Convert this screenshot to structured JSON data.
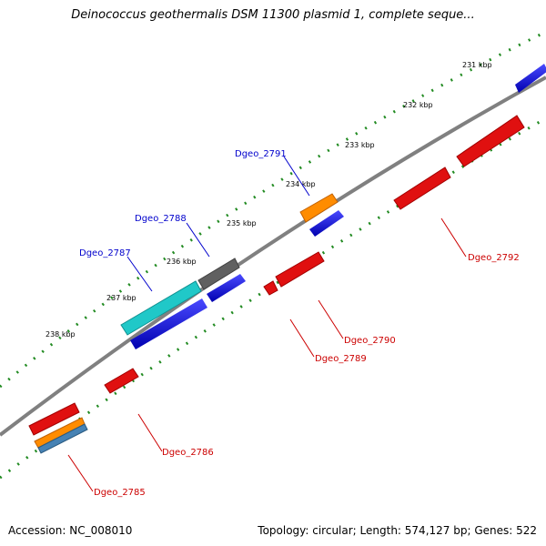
{
  "title": "Deinococcus geothermalis DSM 11300 plasmid 1, complete seque...",
  "footer": {
    "accession": "Accession: NC_008010",
    "summary": "Topology: circular; Length: 574,127 bp; Genes: 522"
  },
  "ticks": [
    "231 kbp",
    "232 kbp",
    "233 kbp",
    "234 kbp",
    "235 kbp",
    "236 kbp",
    "237 kbp",
    "238 kbp"
  ],
  "genes": [
    {
      "name": "Dgeo_2791",
      "color": "#0000cc"
    },
    {
      "name": "Dgeo_2788",
      "color": "#0000cc"
    },
    {
      "name": "Dgeo_2787",
      "color": "#0000cc"
    },
    {
      "name": "Dgeo_2792",
      "color": "#cc0000"
    },
    {
      "name": "Dgeo_2790",
      "color": "#cc0000"
    },
    {
      "name": "Dgeo_2789",
      "color": "#cc0000"
    },
    {
      "name": "Dgeo_2786",
      "color": "#cc0000"
    },
    {
      "name": "Dgeo_2785",
      "color": "#cc0000"
    }
  ],
  "colors": {
    "backbone": "#808080",
    "tick_track": "#228b22",
    "forward_cds": "#1010e0",
    "reverse_cds": "#e01010",
    "orange": "#ff8c00",
    "cyan": "#20c8c8",
    "gray": "#606060",
    "steelblue": "#4682b4"
  }
}
